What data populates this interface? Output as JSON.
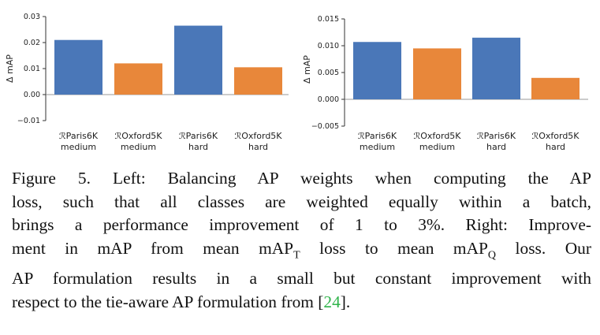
{
  "colors": {
    "blue": "#4a77b8",
    "orange": "#e8873a",
    "axis": "#333333",
    "text": "#222222",
    "cite": "#2fb34a"
  },
  "chart_data": [
    {
      "type": "bar",
      "ylabel": "Δ mAP",
      "xlabel": "",
      "ylim": [
        -0.01,
        0.03
      ],
      "yticks": [
        -0.01,
        0.0,
        0.01,
        0.02,
        0.03
      ],
      "ytick_labels": [
        "−0.01",
        "0.00",
        "0.01",
        "0.02",
        "0.03"
      ],
      "categories": [
        {
          "line1": "ℛParis6K",
          "line2": "medium"
        },
        {
          "line1": "ℛOxford5K",
          "line2": "medium"
        },
        {
          "line1": "ℛParis6K",
          "line2": "hard"
        },
        {
          "line1": "ℛOxford5K",
          "line2": "hard"
        }
      ],
      "values": [
        0.021,
        0.012,
        0.0265,
        0.0105
      ],
      "bar_colors": [
        "blue",
        "orange",
        "blue",
        "orange"
      ]
    },
    {
      "type": "bar",
      "ylabel": "Δ mAP",
      "xlabel": "",
      "ylim": [
        -0.005,
        0.015
      ],
      "yticks": [
        -0.005,
        0.0,
        0.005,
        0.01,
        0.015
      ],
      "ytick_labels": [
        "−0.005",
        "0.000",
        "0.005",
        "0.010",
        "0.015"
      ],
      "categories": [
        {
          "line1": "ℛParis6K",
          "line2": "medium"
        },
        {
          "line1": "ℛOxford5K",
          "line2": "medium"
        },
        {
          "line1": "ℛParis6K",
          "line2": "hard"
        },
        {
          "line1": "ℛOxford5K",
          "line2": "hard"
        }
      ],
      "values": [
        0.0107,
        0.0095,
        0.0115,
        0.004
      ],
      "bar_colors": [
        "blue",
        "orange",
        "blue",
        "orange"
      ]
    }
  ],
  "caption": {
    "line1": "Figure 5.   Left: Balancing AP weights when computing the AP",
    "line2": "loss, such that all classes are weighted equally within a batch,",
    "line3": "brings a performance improvement of 1 to 3%. Right: Improve-",
    "line4_a": "ment in mAP from mean mAP",
    "line4_sub1": "T",
    "line4_b": " loss to mean mAP",
    "line4_sub2": "Q",
    "line4_c": " loss.  Our",
    "line5": "AP formulation results in a small but constant improvement with",
    "line6_a": "respect to the tie-aware AP formulation from ",
    "line6_lb": "[",
    "line6_cite": "24",
    "line6_rb": "]",
    "line6_end": "."
  }
}
